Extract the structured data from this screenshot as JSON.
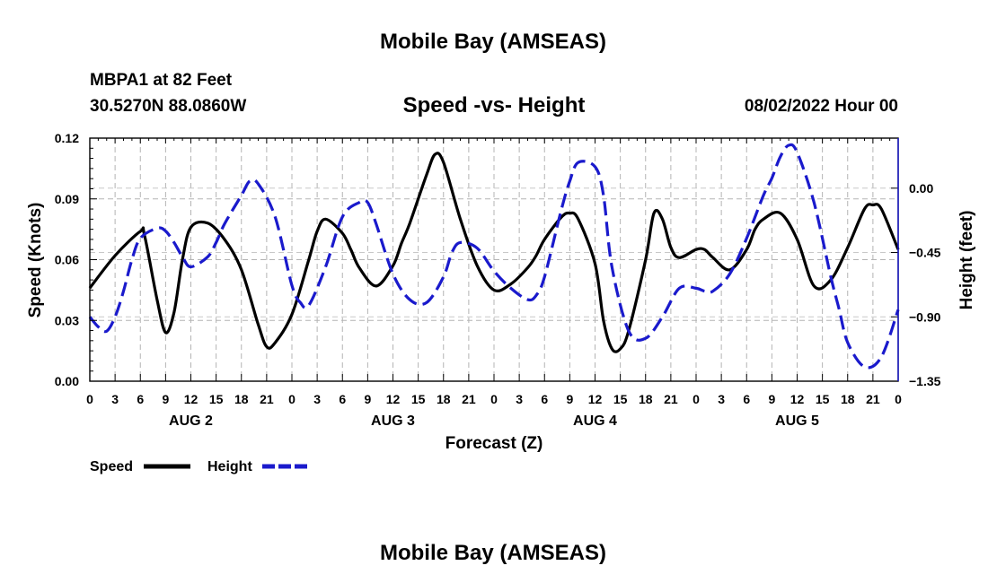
{
  "page": {
    "title_top": "Mobile Bay (AMSEAS)",
    "title_bottom": "Mobile Bay (AMSEAS)"
  },
  "station": {
    "name_line": "MBPA1 at 82 Feet",
    "coords_line": "30.5270N  88.0860W",
    "datetime": "08/02/2022 Hour 00"
  },
  "chart_data": {
    "type": "line",
    "title": "Speed -vs- Height",
    "xlabel": "Forecast (Z)",
    "ylabel_left": "Speed (Knots)",
    "ylabel_right": "Height (feet)",
    "ylim_left": [
      0,
      0.12
    ],
    "ylim_right": [
      -1.35,
      0.35
    ],
    "xlim_hours": [
      0,
      96
    ],
    "left_ticks": [
      "0.00",
      "0.03",
      "0.06",
      "0.09",
      "0.12"
    ],
    "left_tick_values": [
      0,
      0.03,
      0.06,
      0.09,
      0.12
    ],
    "right_ticks": [
      "−1.35",
      "−0.90",
      "−0.45",
      "0.00"
    ],
    "right_tick_values": [
      -1.35,
      -0.9,
      -0.45,
      0
    ],
    "x_tick_labels": [
      "0",
      "3",
      "6",
      "9",
      "12",
      "15",
      "18",
      "21",
      "0",
      "3",
      "6",
      "9",
      "12",
      "15",
      "18",
      "21",
      "0",
      "3",
      "6",
      "9",
      "12",
      "15",
      "18",
      "21",
      "0",
      "3",
      "6",
      "9",
      "12",
      "15",
      "18",
      "21",
      "0"
    ],
    "day_labels": [
      "AUG 2",
      "AUG 3",
      "AUG 4",
      "AUG 5"
    ],
    "day_label_hours": [
      12,
      36,
      60,
      84
    ],
    "grid": true,
    "series": [
      {
        "name": "Speed",
        "axis": "left",
        "color": "#000000",
        "style": "solid",
        "x": [
          0,
          3,
          6,
          6.5,
          8,
          9,
          10,
          11,
          12,
          14,
          16,
          18,
          20,
          21,
          22,
          24,
          26,
          27,
          28,
          30,
          31,
          32,
          34,
          36,
          37,
          38,
          40,
          41,
          42,
          44,
          46,
          48,
          50,
          52,
          53,
          54,
          56,
          57,
          58,
          60,
          61,
          62,
          63,
          64,
          66,
          67,
          68,
          69,
          70,
          72,
          73,
          74,
          76,
          78,
          79,
          80,
          82,
          84,
          86,
          88,
          90,
          92,
          93,
          94,
          96
        ],
        "values": [
          0.046,
          0.062,
          0.074,
          0.072,
          0.04,
          0.024,
          0.034,
          0.06,
          0.076,
          0.078,
          0.07,
          0.055,
          0.028,
          0.017,
          0.019,
          0.033,
          0.06,
          0.074,
          0.08,
          0.073,
          0.065,
          0.056,
          0.047,
          0.057,
          0.068,
          0.078,
          0.102,
          0.112,
          0.108,
          0.08,
          0.057,
          0.045,
          0.048,
          0.056,
          0.062,
          0.07,
          0.081,
          0.083,
          0.08,
          0.058,
          0.03,
          0.016,
          0.016,
          0.025,
          0.06,
          0.083,
          0.08,
          0.066,
          0.061,
          0.065,
          0.065,
          0.061,
          0.055,
          0.065,
          0.075,
          0.08,
          0.083,
          0.07,
          0.047,
          0.05,
          0.066,
          0.085,
          0.087,
          0.085,
          0.065
        ]
      },
      {
        "name": "Height",
        "axis": "right",
        "color": "#1a1acc",
        "style": "dashed",
        "x": [
          0,
          1,
          2,
          3,
          4,
          5,
          6,
          8,
          9,
          10,
          11,
          12,
          14,
          15,
          16,
          18,
          19,
          20,
          22,
          24,
          25,
          26,
          28,
          30,
          32,
          33,
          34,
          36,
          38,
          40,
          42,
          43,
          44,
          46,
          48,
          50,
          52,
          53,
          54,
          56,
          57,
          58,
          60,
          61,
          62,
          64,
          66,
          68,
          70,
          72,
          73,
          74,
          76,
          78,
          80,
          81,
          82,
          83,
          84,
          86,
          88,
          89,
          90,
          92,
          94,
          96
        ],
        "values": [
          -0.9,
          -0.97,
          -1.0,
          -0.9,
          -0.72,
          -0.5,
          -0.35,
          -0.28,
          -0.3,
          -0.38,
          -0.48,
          -0.55,
          -0.48,
          -0.38,
          -0.25,
          -0.05,
          0.05,
          0.03,
          -0.2,
          -0.68,
          -0.8,
          -0.82,
          -0.55,
          -0.2,
          -0.1,
          -0.1,
          -0.25,
          -0.6,
          -0.78,
          -0.8,
          -0.62,
          -0.45,
          -0.38,
          -0.42,
          -0.58,
          -0.7,
          -0.78,
          -0.75,
          -0.62,
          -0.15,
          0.05,
          0.18,
          0.15,
          -0.05,
          -0.55,
          -1.0,
          -1.05,
          -0.9,
          -0.7,
          -0.7,
          -0.72,
          -0.72,
          -0.6,
          -0.35,
          -0.05,
          0.07,
          0.22,
          0.3,
          0.25,
          -0.1,
          -0.62,
          -0.85,
          -1.08,
          -1.25,
          -1.18,
          -0.85
        ]
      }
    ],
    "legend": [
      "Speed",
      "Height"
    ],
    "legend_position": "bottom-left"
  }
}
